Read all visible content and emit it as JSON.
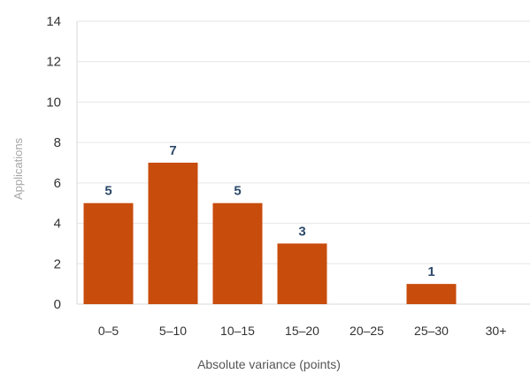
{
  "chart_data": {
    "type": "bar",
    "title": "",
    "xlabel": "Absolute variance (points)",
    "ylabel": "Applications",
    "categories": [
      "0–5",
      "5–10",
      "10–15",
      "15–20",
      "20–25",
      "25–30",
      "30+"
    ],
    "values": [
      5,
      7,
      5,
      3,
      0,
      1,
      0
    ],
    "data_labels": [
      "5",
      "7",
      "5",
      "3",
      "",
      "1",
      ""
    ],
    "ylim": [
      0,
      14
    ],
    "yticks": [
      0,
      2,
      4,
      6,
      8,
      10,
      12,
      14
    ],
    "grid": true,
    "legend": "none",
    "bar_color": "#c84c0c",
    "label_color": "#2d4a6a"
  }
}
